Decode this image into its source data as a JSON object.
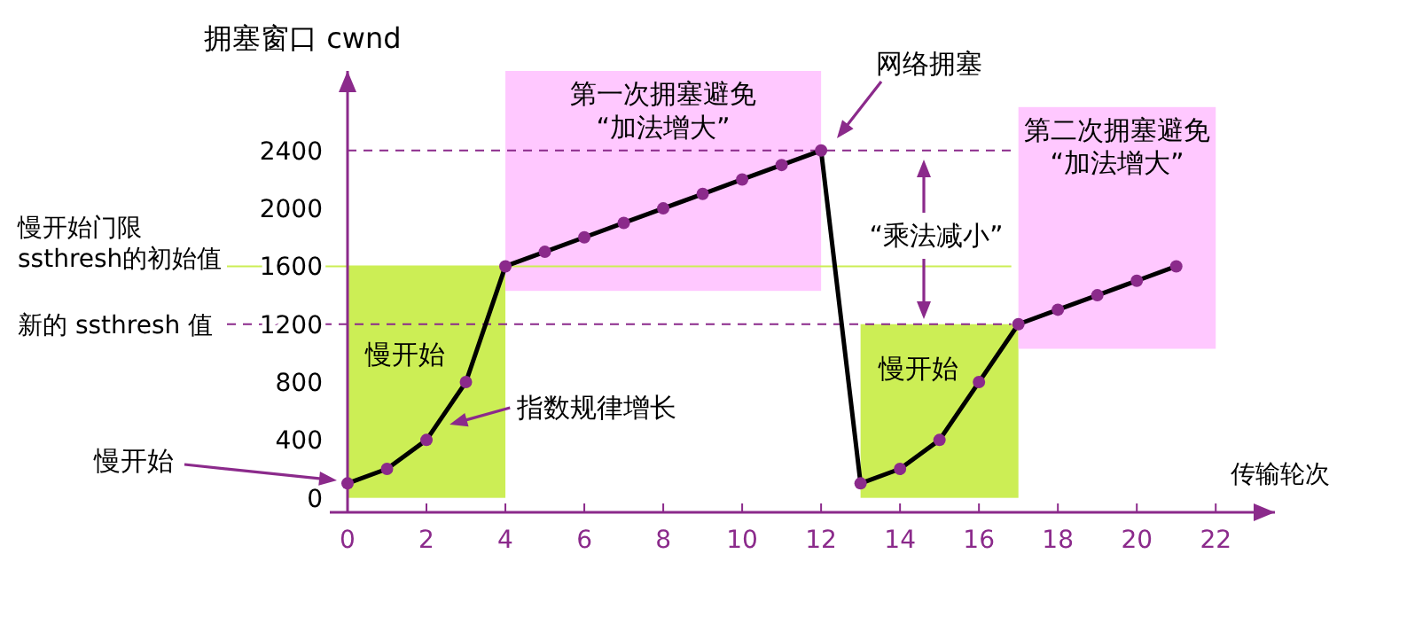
{
  "chart_data": {
    "type": "line",
    "ylabel": "拥塞窗口 cwnd",
    "xlabel": "传输轮次",
    "x": [
      0,
      1,
      2,
      3,
      4,
      5,
      6,
      7,
      8,
      9,
      10,
      11,
      12,
      13,
      14,
      15,
      16,
      17,
      18,
      19,
      20,
      21
    ],
    "series": [
      {
        "color": "#000000",
        "values": [
          100,
          200,
          400,
          800,
          1600,
          1700,
          1800,
          1900,
          2000,
          2100,
          2200,
          2300,
          2400,
          100,
          200,
          400,
          800,
          1200,
          1300,
          1400,
          1500,
          1600
        ]
      }
    ],
    "xlim": [
      0,
      23.5
    ],
    "ylim": [
      -100,
      2950
    ],
    "xticks": [
      0,
      2,
      4,
      6,
      8,
      10,
      12,
      14,
      16,
      18,
      20,
      22
    ],
    "yticks": [
      0,
      400,
      800,
      1200,
      1600,
      2000,
      2400
    ],
    "marker": "circle",
    "line_style": "solid",
    "grid": false,
    "bands": [
      {
        "axis": "x",
        "from": 0,
        "to": 4,
        "label": "慢开始",
        "color": "#ccee55"
      },
      {
        "axis": "x",
        "from": 4,
        "to": 12,
        "label": "第一次拥塞避免\n“加法增大”",
        "color": "#ffc8ff"
      },
      {
        "axis": "x",
        "from": 13,
        "to": 17,
        "label": "慢开始",
        "color": "#ccee55"
      },
      {
        "axis": "x",
        "from": 17,
        "to": 22,
        "label": "第二次拥塞避免\n“加法增大”",
        "color": "#ffc8ff"
      }
    ],
    "ref_lines": [
      {
        "axis": "y",
        "value": 2400,
        "line_style": "dashed",
        "color": "#8b2a8b"
      },
      {
        "axis": "y",
        "value": 1600,
        "label": "慢开始门限\nssthresh的初始值",
        "line_style": "solid",
        "color": "#ccee55"
      },
      {
        "axis": "y",
        "value": 1200,
        "label": "新的 ssthresh 值",
        "line_style": "dashed",
        "color": "#8b2a8b"
      }
    ],
    "annotations": [
      "网络拥塞",
      {
        "text": "指数规律增长",
        "x": 2.5,
        "y": 500
      },
      "慢开始",
      "“乘法减小”"
    ]
  }
}
